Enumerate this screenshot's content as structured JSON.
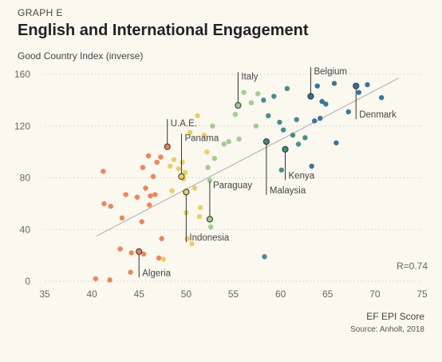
{
  "header": {
    "eyebrow": "GRAPH E",
    "title": "English and International Engagement"
  },
  "footer": {
    "source": "Source: Anholt, 2018"
  },
  "chart_data": {
    "type": "scatter",
    "title": "English and International Engagement",
    "xlabel": "EF EPI Score",
    "ylabel": "Good Country Index (inverse)",
    "xlim": [
      35,
      75
    ],
    "ylim": [
      0,
      160
    ],
    "xticks": [
      35,
      40,
      45,
      50,
      55,
      60,
      65,
      70,
      75
    ],
    "yticks": [
      0,
      40,
      80,
      120,
      160
    ],
    "grid": "horizontal dotted",
    "correlation_label": "R=0.74",
    "trendline": {
      "x": [
        40.5,
        72.5
      ],
      "y": [
        35,
        157
      ]
    },
    "colors": {
      "orange": "#ee7d52",
      "yellow": "#e8cc5e",
      "lightgreen": "#9fc98c",
      "teal": "#3e8783",
      "blue": "#2f6f9a",
      "trendline": "#aaaaaa",
      "gridline": "#cccccc"
    },
    "points": [
      {
        "x": 40.4,
        "y": 2,
        "g": "orange"
      },
      {
        "x": 41.2,
        "y": 85,
        "g": "orange"
      },
      {
        "x": 41.3,
        "y": 60,
        "g": "orange"
      },
      {
        "x": 41.9,
        "y": 1,
        "g": "orange"
      },
      {
        "x": 42.0,
        "y": 58,
        "g": "orange"
      },
      {
        "x": 43.0,
        "y": 25,
        "g": "orange"
      },
      {
        "x": 43.2,
        "y": 49,
        "g": "orange"
      },
      {
        "x": 43.6,
        "y": 67,
        "g": "orange"
      },
      {
        "x": 44.1,
        "y": 7,
        "g": "orange"
      },
      {
        "x": 44.2,
        "y": 22,
        "g": "orange"
      },
      {
        "x": 44.8,
        "y": 65,
        "g": "orange"
      },
      {
        "x": 45.3,
        "y": 46,
        "g": "orange"
      },
      {
        "x": 45.4,
        "y": 88,
        "g": "orange"
      },
      {
        "x": 45.5,
        "y": 21,
        "g": "orange"
      },
      {
        "x": 45.7,
        "y": 72,
        "g": "orange"
      },
      {
        "x": 46.0,
        "y": 97,
        "g": "orange"
      },
      {
        "x": 46.1,
        "y": 59,
        "g": "orange"
      },
      {
        "x": 46.2,
        "y": 66,
        "g": "orange"
      },
      {
        "x": 46.5,
        "y": 81,
        "g": "orange"
      },
      {
        "x": 46.7,
        "y": 67,
        "g": "orange"
      },
      {
        "x": 46.9,
        "y": 92,
        "g": "orange"
      },
      {
        "x": 47.1,
        "y": 18,
        "g": "orange"
      },
      {
        "x": 47.3,
        "y": 96,
        "g": "orange"
      },
      {
        "x": 47.4,
        "y": 33,
        "g": "orange"
      },
      {
        "x": 47.6,
        "y": 17,
        "g": "yellow"
      },
      {
        "x": 48.3,
        "y": 89,
        "g": "yellow"
      },
      {
        "x": 48.5,
        "y": 70,
        "g": "yellow"
      },
      {
        "x": 48.7,
        "y": 94,
        "g": "yellow"
      },
      {
        "x": 49.2,
        "y": 87,
        "g": "yellow"
      },
      {
        "x": 49.6,
        "y": 92,
        "g": "yellow"
      },
      {
        "x": 49.7,
        "y": 79,
        "g": "yellow"
      },
      {
        "x": 49.9,
        "y": 84,
        "g": "yellow"
      },
      {
        "x": 50.0,
        "y": 53,
        "g": "yellow"
      },
      {
        "x": 50.1,
        "y": 33,
        "g": "yellow"
      },
      {
        "x": 50.4,
        "y": 115,
        "g": "yellow"
      },
      {
        "x": 50.6,
        "y": 29,
        "g": "yellow"
      },
      {
        "x": 50.9,
        "y": 72,
        "g": "yellow"
      },
      {
        "x": 51.2,
        "y": 128,
        "g": "yellow"
      },
      {
        "x": 51.4,
        "y": 50,
        "g": "yellow"
      },
      {
        "x": 51.5,
        "y": 57,
        "g": "yellow"
      },
      {
        "x": 51.9,
        "y": 113,
        "g": "yellow"
      },
      {
        "x": 52.2,
        "y": 100,
        "g": "yellow"
      },
      {
        "x": 52.3,
        "y": 88,
        "g": "lightgreen"
      },
      {
        "x": 52.5,
        "y": 78,
        "g": "lightgreen"
      },
      {
        "x": 52.6,
        "y": 42,
        "g": "lightgreen"
      },
      {
        "x": 52.8,
        "y": 120,
        "g": "lightgreen"
      },
      {
        "x": 53.0,
        "y": 95,
        "g": "lightgreen"
      },
      {
        "x": 54.0,
        "y": 106,
        "g": "lightgreen"
      },
      {
        "x": 54.5,
        "y": 108,
        "g": "lightgreen"
      },
      {
        "x": 55.2,
        "y": 129,
        "g": "lightgreen"
      },
      {
        "x": 55.6,
        "y": 110,
        "g": "lightgreen"
      },
      {
        "x": 56.1,
        "y": 146,
        "g": "lightgreen"
      },
      {
        "x": 56.9,
        "y": 138,
        "g": "lightgreen"
      },
      {
        "x": 57.4,
        "y": 120,
        "g": "lightgreen"
      },
      {
        "x": 57.6,
        "y": 145,
        "g": "lightgreen"
      },
      {
        "x": 58.2,
        "y": 140,
        "g": "teal"
      },
      {
        "x": 58.7,
        "y": 128,
        "g": "teal"
      },
      {
        "x": 59.3,
        "y": 143,
        "g": "teal"
      },
      {
        "x": 59.9,
        "y": 123,
        "g": "teal"
      },
      {
        "x": 60.3,
        "y": 117,
        "g": "teal"
      },
      {
        "x": 60.7,
        "y": 149,
        "g": "teal"
      },
      {
        "x": 61.3,
        "y": 113,
        "g": "teal"
      },
      {
        "x": 61.7,
        "y": 125,
        "g": "teal"
      },
      {
        "x": 61.9,
        "y": 106,
        "g": "teal"
      },
      {
        "x": 62.6,
        "y": 111,
        "g": "teal"
      },
      {
        "x": 60.1,
        "y": 86,
        "g": "teal"
      },
      {
        "x": 58.3,
        "y": 19,
        "g": "teal"
      },
      {
        "x": 63.3,
        "y": 89,
        "g": "blue"
      },
      {
        "x": 63.6,
        "y": 124,
        "g": "blue"
      },
      {
        "x": 63.9,
        "y": 151,
        "g": "blue"
      },
      {
        "x": 64.2,
        "y": 126,
        "g": "blue"
      },
      {
        "x": 64.4,
        "y": 139,
        "g": "blue"
      },
      {
        "x": 64.8,
        "y": 137,
        "g": "blue"
      },
      {
        "x": 65.7,
        "y": 153,
        "g": "blue"
      },
      {
        "x": 65.9,
        "y": 107,
        "g": "blue"
      },
      {
        "x": 67.2,
        "y": 131,
        "g": "blue"
      },
      {
        "x": 68.3,
        "y": 146,
        "g": "blue"
      },
      {
        "x": 69.2,
        "y": 152,
        "g": "blue"
      },
      {
        "x": 70.7,
        "y": 142,
        "g": "blue"
      }
    ],
    "annotations": [
      {
        "label": "Algeria",
        "x": 45.0,
        "y": 23,
        "g": "orange",
        "dir": "down",
        "len": 29
      },
      {
        "label": "U.A.E.",
        "x": 48.0,
        "y": 104,
        "g": "orange",
        "dir": "up",
        "len": 31
      },
      {
        "label": "Panama",
        "x": 49.5,
        "y": 81,
        "g": "yellow",
        "dir": "up",
        "len": 50
      },
      {
        "label": "Indonesia",
        "x": 50.0,
        "y": 69,
        "g": "yellow",
        "dir": "down",
        "len": 59
      },
      {
        "label": "Paraguay",
        "x": 52.5,
        "y": 48,
        "g": "lightgreen",
        "dir": "up",
        "len": 44
      },
      {
        "label": "Italy",
        "x": 55.5,
        "y": 136,
        "g": "lightgreen",
        "dir": "up",
        "len": 38
      },
      {
        "label": "Malaysia",
        "x": 58.5,
        "y": 108,
        "g": "teal",
        "dir": "down",
        "len": 63
      },
      {
        "label": "Kenya",
        "x": 60.5,
        "y": 102,
        "g": "teal",
        "dir": "down",
        "len": 35
      },
      {
        "label": "Belgium",
        "x": 63.2,
        "y": 143,
        "g": "blue",
        "dir": "up",
        "len": 33
      },
      {
        "label": "Denmark",
        "x": 68.0,
        "y": 151,
        "g": "blue",
        "dir": "down",
        "len": 38
      }
    ]
  }
}
